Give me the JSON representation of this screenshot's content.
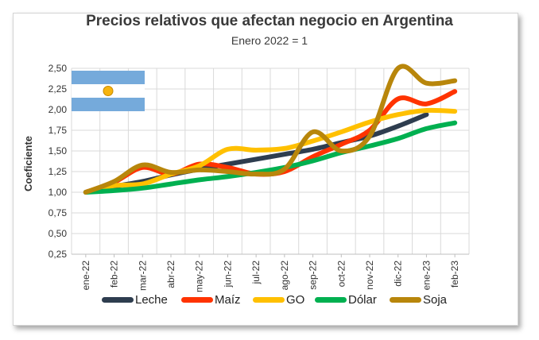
{
  "chart_data": {
    "type": "line",
    "title": "Precios relativos que afectan negocio en Argentina",
    "subtitle": "Enero 2022 = 1",
    "ylabel": "Coeficiente",
    "xlabel": "",
    "categories": [
      "ene-22",
      "feb-22",
      "mar-22",
      "abr-22",
      "may-22",
      "jun-22",
      "jul-22",
      "ago-22",
      "sep-22",
      "oct-22",
      "nov-22",
      "dic-22",
      "ene-23",
      "feb-23"
    ],
    "y_ticks": [
      "0,25",
      "0,50",
      "0,75",
      "1,00",
      "1,25",
      "1,50",
      "1,75",
      "2,00",
      "2,25",
      "2,50"
    ],
    "ylim": [
      0.25,
      2.5
    ],
    "grid": true,
    "legend_position": "bottom",
    "series": [
      {
        "name": "Leche",
        "color": "#2e3d4f",
        "values": [
          1.0,
          1.07,
          1.13,
          1.21,
          1.28,
          1.34,
          1.4,
          1.46,
          1.52,
          1.6,
          1.68,
          1.8,
          1.94,
          null
        ]
      },
      {
        "name": "Maíz",
        "color": "#ff3300",
        "values": [
          1.0,
          1.12,
          1.3,
          1.22,
          1.34,
          1.3,
          1.22,
          1.25,
          1.43,
          1.58,
          1.75,
          2.13,
          2.07,
          2.22
        ]
      },
      {
        "name": "GO",
        "color": "#ffc000",
        "values": [
          1.0,
          1.08,
          1.1,
          1.22,
          1.32,
          1.52,
          1.51,
          1.53,
          1.62,
          1.73,
          1.85,
          1.94,
          1.99,
          1.98
        ]
      },
      {
        "name": "Dólar",
        "color": "#00b050",
        "values": [
          1.0,
          1.02,
          1.05,
          1.1,
          1.15,
          1.19,
          1.24,
          1.3,
          1.38,
          1.48,
          1.56,
          1.65,
          1.77,
          1.84
        ]
      },
      {
        "name": "Soja",
        "color": "#b8860b",
        "values": [
          1.0,
          1.13,
          1.33,
          1.24,
          1.27,
          1.25,
          1.22,
          1.28,
          1.73,
          1.5,
          1.68,
          2.5,
          2.32,
          2.35
        ]
      }
    ]
  },
  "flag": {
    "colors": {
      "blue": "#75aadb",
      "white": "#ffffff",
      "sun": "#f6b40e"
    }
  }
}
